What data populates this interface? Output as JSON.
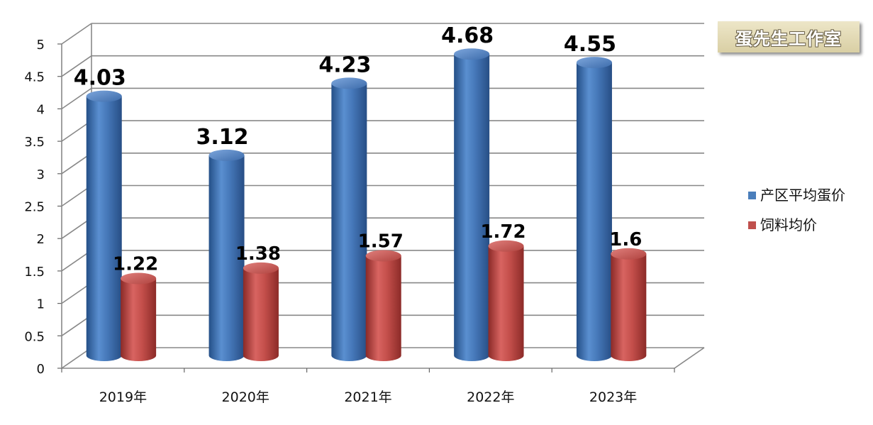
{
  "watermark": "蛋先生工作室",
  "chart_data": {
    "type": "bar",
    "categories": [
      "2019年",
      "2020年",
      "2021年",
      "2022年",
      "2023年"
    ],
    "series": [
      {
        "name": "产区平均蛋价",
        "values": [
          4.03,
          3.12,
          4.23,
          4.68,
          4.55
        ],
        "labels": [
          "4.03",
          "3.12",
          "4.23",
          "4.68",
          "4.55"
        ],
        "color": "#4a7ebb"
      },
      {
        "name": "饲料均价",
        "values": [
          1.22,
          1.38,
          1.57,
          1.72,
          1.6
        ],
        "labels": [
          "1.22",
          "1.38",
          "1.57",
          "1.72",
          "1.6"
        ],
        "color": "#c0504d"
      }
    ],
    "yticks": [
      "0",
      "0.5",
      "1",
      "1.5",
      "2",
      "2.5",
      "3",
      "3.5",
      "4",
      "4.5",
      "5"
    ],
    "ylim": [
      0,
      5
    ],
    "grid": true,
    "legend_position": "right",
    "style": "3d-cylinder"
  }
}
